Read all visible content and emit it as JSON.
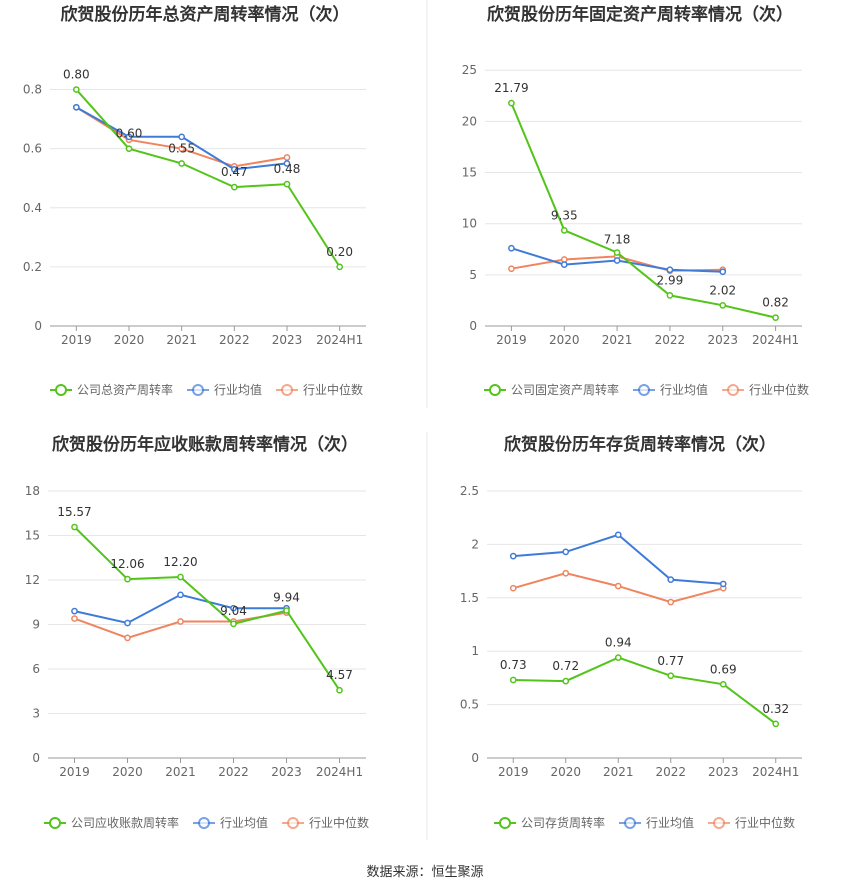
{
  "source": "数据来源：恒生聚源",
  "colors": {
    "company": "#52c41a",
    "avg": "#3e7bd9",
    "median": "#f0845f",
    "grid": "#e6e6e6",
    "axis": "#999999",
    "divider": "#e8e8e8"
  },
  "chart_data": [
    {
      "type": "line",
      "title": "欣贺股份历年总资产周转率情况（次）",
      "categories": [
        "2019",
        "2020",
        "2021",
        "2022",
        "2023",
        "2024H1"
      ],
      "yticks": [
        "0",
        "0.2",
        "0.4",
        "0.6",
        "0.8"
      ],
      "ylim": [
        0,
        0.9
      ],
      "series": [
        {
          "name": "公司总资产周转率",
          "key": "company",
          "values": [
            0.8,
            0.6,
            0.55,
            0.47,
            0.48,
            0.2
          ],
          "labels": [
            "0.80",
            "0.60",
            "0.55",
            "0.47",
            "0.48",
            "0.20"
          ]
        },
        {
          "name": "行业均值",
          "key": "avg",
          "values": [
            0.74,
            0.64,
            0.64,
            0.53,
            0.55,
            null
          ]
        },
        {
          "name": "行业中位数",
          "key": "median",
          "values": [
            0.74,
            0.63,
            0.6,
            0.54,
            0.57,
            null
          ]
        }
      ]
    },
    {
      "type": "line",
      "title": "欣贺股份历年固定资产周转率情况（次）",
      "categories": [
        "2019",
        "2020",
        "2021",
        "2022",
        "2023",
        "2024H1"
      ],
      "yticks": [
        "0",
        "5",
        "10",
        "15",
        "20",
        "25"
      ],
      "ylim": [
        0,
        26
      ],
      "series": [
        {
          "name": "公司固定资产周转率",
          "key": "company",
          "values": [
            21.79,
            9.35,
            7.18,
            2.99,
            2.02,
            0.82
          ],
          "labels": [
            "21.79",
            "9.35",
            "7.18",
            "2.99",
            "2.02",
            "0.82"
          ]
        },
        {
          "name": "行业均值",
          "key": "avg",
          "values": [
            7.6,
            6.0,
            6.4,
            5.5,
            5.3,
            null
          ]
        },
        {
          "name": "行业中位数",
          "key": "median",
          "values": [
            5.6,
            6.5,
            6.8,
            5.4,
            5.5,
            null
          ]
        }
      ]
    },
    {
      "type": "line",
      "title": "欣贺股份历年应收账款周转率情况（次）",
      "categories": [
        "2019",
        "2020",
        "2021",
        "2022",
        "2023",
        "2024H1"
      ],
      "yticks": [
        "0",
        "3",
        "6",
        "9",
        "12",
        "15",
        "18"
      ],
      "ylim": [
        0,
        18
      ],
      "series": [
        {
          "name": "公司应收账款周转率",
          "key": "company",
          "values": [
            15.57,
            12.06,
            12.2,
            9.04,
            9.94,
            4.57
          ],
          "labels": [
            "15.57",
            "12.06",
            "12.20",
            "9.04",
            "9.94",
            "4.57"
          ]
        },
        {
          "name": "行业均值",
          "key": "avg",
          "values": [
            9.9,
            9.1,
            11.0,
            10.1,
            10.1,
            null
          ]
        },
        {
          "name": "行业中位数",
          "key": "median",
          "values": [
            9.4,
            8.1,
            9.2,
            9.2,
            9.8,
            null
          ]
        }
      ]
    },
    {
      "type": "line",
      "title": "欣贺股份历年存货周转率情况（次）",
      "categories": [
        "2019",
        "2020",
        "2021",
        "2022",
        "2023",
        "2024H1"
      ],
      "yticks": [
        "0",
        "0.5",
        "1",
        "1.5",
        "2",
        "2.5"
      ],
      "ylim": [
        0,
        2.5
      ],
      "series": [
        {
          "name": "公司存货周转率",
          "key": "company",
          "values": [
            0.73,
            0.72,
            0.94,
            0.77,
            0.69,
            0.32
          ],
          "labels": [
            "0.73",
            "0.72",
            "0.94",
            "0.77",
            "0.69",
            "0.32"
          ]
        },
        {
          "name": "行业均值",
          "key": "avg",
          "values": [
            1.89,
            1.93,
            2.09,
            1.67,
            1.63,
            null
          ]
        },
        {
          "name": "行业中位数",
          "key": "median",
          "values": [
            1.59,
            1.73,
            1.61,
            1.46,
            1.59,
            null
          ]
        }
      ]
    }
  ]
}
